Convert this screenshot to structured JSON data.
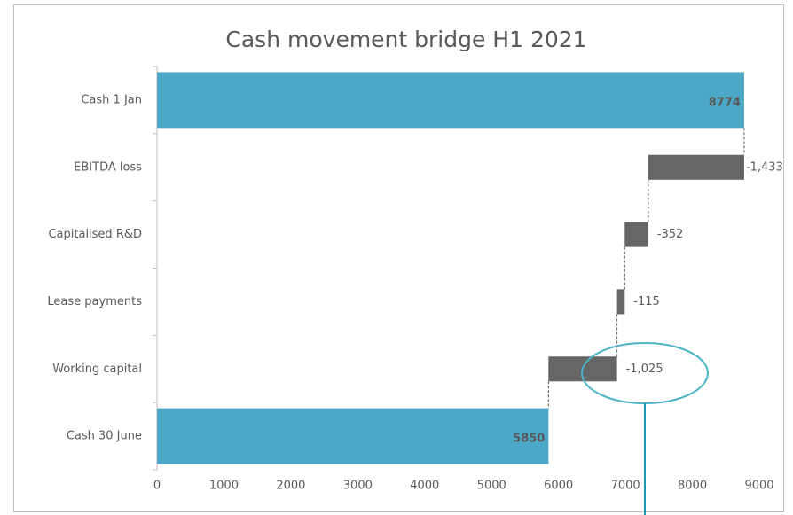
{
  "chart_data": {
    "type": "waterfall",
    "title": "Cash movement bridge H1 2021",
    "categories": [
      "Cash 1 Jan",
      "EBITDA loss",
      "Capitalised R&D",
      "Lease payments",
      "Working capital",
      "Cash 30 June"
    ],
    "values": [
      8774,
      -1433,
      -352,
      -115,
      -1025,
      5850
    ],
    "value_labels": [
      "8774",
      "-1,433",
      "-352",
      "-115",
      "-1,025",
      "5850"
    ],
    "is_total": [
      true,
      false,
      false,
      false,
      false,
      true
    ],
    "total_color": "#4ba8c9",
    "delta_color": "#666666",
    "xlim": [
      0,
      9000
    ],
    "xticks": [
      0,
      1000,
      2000,
      3000,
      4000,
      5000,
      6000,
      7000,
      8000,
      9000
    ]
  }
}
